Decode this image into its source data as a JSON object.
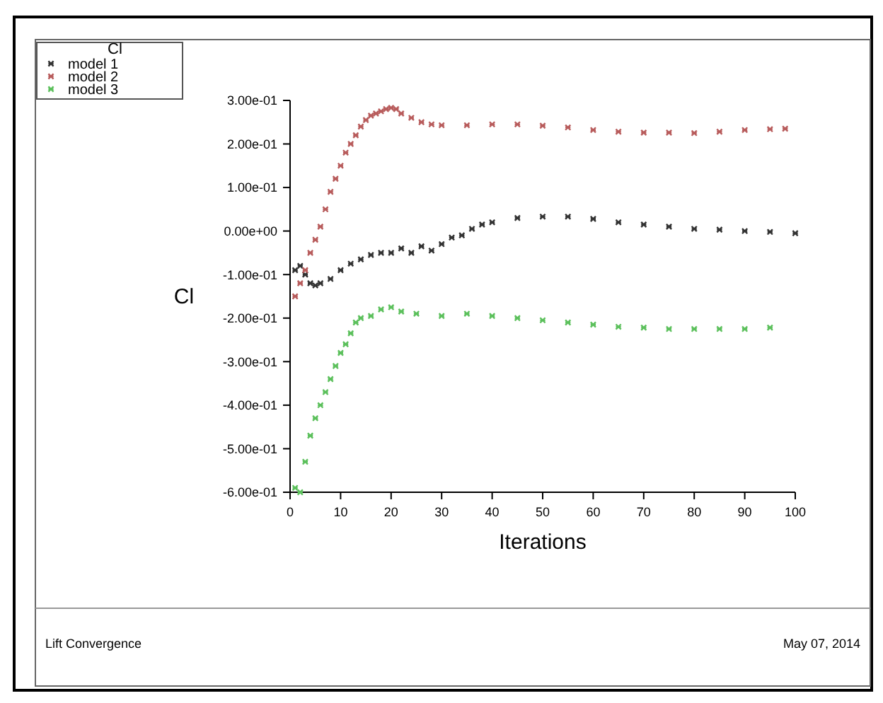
{
  "chart_data": {
    "type": "scatter",
    "xlabel": "Iterations",
    "ylabel": "Cl",
    "legend_title": "Cl",
    "legend": "top left",
    "marker": "cross",
    "xlim": [
      0,
      100
    ],
    "xticks": [
      0,
      10,
      20,
      30,
      40,
      50,
      60,
      70,
      80,
      90,
      100
    ],
    "ylim": [
      -0.6,
      0.3
    ],
    "yticks": [
      {
        "value": -0.6,
        "label": "-6.00e-01"
      },
      {
        "value": -0.5,
        "label": "-5.00e-01"
      },
      {
        "value": -0.4,
        "label": "-4.00e-01"
      },
      {
        "value": -0.3,
        "label": "-3.00e-01"
      },
      {
        "value": -0.2,
        "label": "-2.00e-01"
      },
      {
        "value": -0.1,
        "label": "-1.00e-01"
      },
      {
        "value": 0,
        "label": "0.00e+00"
      },
      {
        "value": 0.1,
        "label": "1.00e-01"
      },
      {
        "value": 0.2,
        "label": "2.00e-01"
      },
      {
        "value": 0.3,
        "label": "3.00e-01"
      }
    ],
    "annotations": [
      "Lift Convergence",
      "May 07, 2014"
    ],
    "series": [
      {
        "name": "model 1",
        "color": "#333333",
        "x": [
          1,
          2,
          3,
          4,
          5,
          6,
          8,
          10,
          12,
          14,
          16,
          18,
          20,
          22,
          24,
          26,
          28,
          30,
          32,
          34,
          36,
          38,
          40,
          45,
          50,
          55,
          60,
          65,
          70,
          75,
          80,
          85,
          90,
          95,
          100
        ],
        "values": [
          -0.09,
          -0.08,
          -0.1,
          -0.12,
          -0.125,
          -0.12,
          -0.11,
          -0.09,
          -0.075,
          -0.065,
          -0.055,
          -0.05,
          -0.05,
          -0.04,
          -0.05,
          -0.035,
          -0.045,
          -0.03,
          -0.015,
          -0.01,
          0.005,
          0.015,
          0.02,
          0.03,
          0.033,
          0.033,
          0.028,
          0.02,
          0.015,
          0.01,
          0.005,
          0.003,
          0,
          -0.002,
          -0.005
        ]
      },
      {
        "name": "model 2",
        "color": "#b85c5c",
        "x": [
          1,
          2,
          3,
          4,
          5,
          6,
          7,
          8,
          9,
          10,
          11,
          12,
          13,
          14,
          15,
          16,
          17,
          18,
          19,
          20,
          21,
          22,
          24,
          26,
          28,
          30,
          35,
          40,
          45,
          50,
          55,
          60,
          65,
          70,
          75,
          80,
          85,
          90,
          95,
          98
        ],
        "values": [
          -0.15,
          -0.12,
          -0.09,
          -0.05,
          -0.02,
          0.01,
          0.05,
          0.09,
          0.12,
          0.15,
          0.18,
          0.2,
          0.22,
          0.24,
          0.255,
          0.265,
          0.27,
          0.275,
          0.28,
          0.283,
          0.28,
          0.27,
          0.26,
          0.25,
          0.245,
          0.243,
          0.243,
          0.245,
          0.245,
          0.242,
          0.238,
          0.232,
          0.228,
          0.226,
          0.226,
          0.225,
          0.228,
          0.232,
          0.234,
          0.235
        ]
      },
      {
        "name": "model 3",
        "color": "#5cc05c",
        "x": [
          1,
          2,
          3,
          4,
          5,
          6,
          7,
          8,
          9,
          10,
          11,
          12,
          13,
          14,
          16,
          18,
          20,
          22,
          25,
          30,
          35,
          40,
          45,
          50,
          55,
          60,
          65,
          70,
          75,
          80,
          85,
          90,
          95
        ],
        "values": [
          -0.59,
          -0.6,
          -0.53,
          -0.47,
          -0.43,
          -0.4,
          -0.37,
          -0.34,
          -0.31,
          -0.28,
          -0.26,
          -0.235,
          -0.21,
          -0.2,
          -0.195,
          -0.18,
          -0.175,
          -0.185,
          -0.19,
          -0.195,
          -0.19,
          -0.195,
          -0.2,
          -0.205,
          -0.21,
          -0.215,
          -0.22,
          -0.222,
          -0.225,
          -0.225,
          -0.225,
          -0.225,
          -0.222
        ]
      }
    ]
  }
}
